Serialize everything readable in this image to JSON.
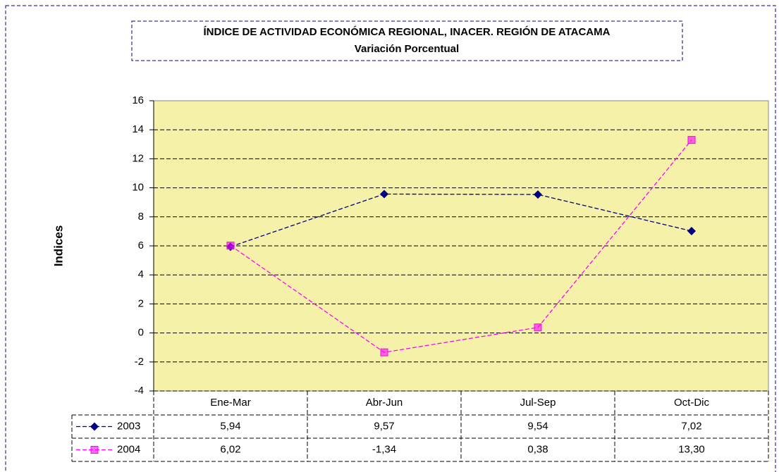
{
  "chart_data": {
    "type": "line",
    "title": "ÍNDICE DE ACTIVIDAD ECONÓMICA REGIONAL, INACER. REGIÓN DE ATACAMA",
    "subtitle": "Variación Porcentual",
    "y_label": "Indices",
    "categories": [
      "Ene-Mar",
      "Abr-Jun",
      "Jul-Sep",
      "Oct-Dic"
    ],
    "series": [
      {
        "name": "2003",
        "color": "#000080",
        "marker": "diamond",
        "values": [
          5.94,
          9.57,
          9.54,
          7.02
        ],
        "value_labels": [
          "5,94",
          "9,57",
          "9,54",
          "7,02"
        ]
      },
      {
        "name": "2004",
        "color": "#ff00ff",
        "marker": "square",
        "values": [
          6.02,
          -1.34,
          0.38,
          13.3
        ],
        "value_labels": [
          "6,02",
          "-1,34",
          "0,38",
          "13,30"
        ]
      }
    ],
    "ylim": [
      -4,
      16
    ],
    "yticks": [
      -4,
      -2,
      0,
      2,
      4,
      6,
      8,
      10,
      12,
      14,
      16
    ],
    "grid": true
  }
}
